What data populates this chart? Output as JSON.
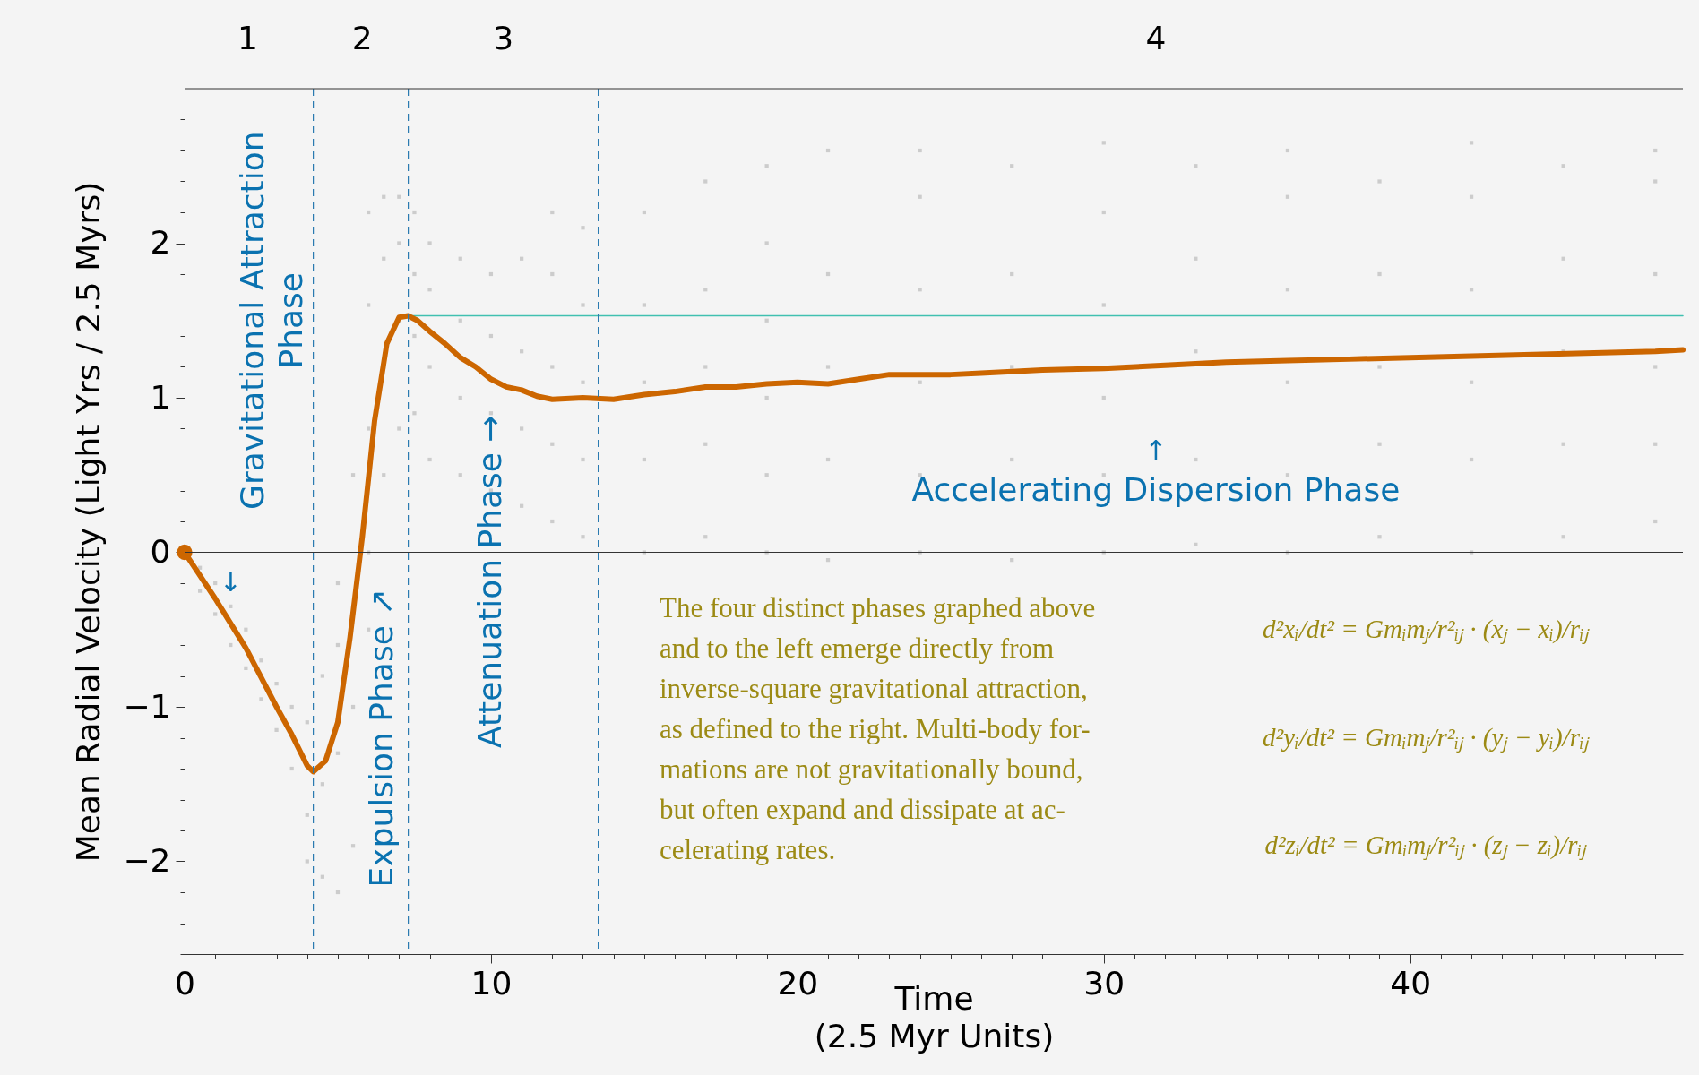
{
  "chart_data": {
    "type": "line",
    "xlabel": "Time\n(2.5 Myr Units)",
    "ylabel": "Mean Radial Velocity (Light Yrs / 2.5 Myrs)",
    "xlim": [
      0,
      48.9
    ],
    "ylim": [
      -2.6,
      3
    ],
    "xticks": [
      0,
      {
        "value": 1,
        "label": null
      },
      {
        "value": 2,
        "label": null
      },
      {
        "value": 3,
        "label": null
      },
      {
        "value": 4,
        "label": null
      },
      {
        "value": 5,
        "label": null
      },
      {
        "value": 6,
        "label": null
      },
      {
        "value": 7,
        "label": null
      },
      {
        "value": 8,
        "label": null
      },
      {
        "value": 9,
        "label": null
      },
      10,
      {
        "value": 11,
        "label": null
      },
      {
        "value": 12,
        "label": null
      },
      {
        "value": 13,
        "label": null
      },
      {
        "value": 14,
        "label": null
      },
      {
        "value": 15,
        "label": null
      },
      {
        "value": 16,
        "label": null
      },
      {
        "value": 17,
        "label": null
      },
      {
        "value": 18,
        "label": null
      },
      {
        "value": 19,
        "label": null
      },
      20,
      {
        "value": 21,
        "label": null
      },
      {
        "value": 22,
        "label": null
      },
      {
        "value": 23,
        "label": null
      },
      {
        "value": 24,
        "label": null
      },
      {
        "value": 25,
        "label": null
      },
      {
        "value": 26,
        "label": null
      },
      {
        "value": 27,
        "label": null
      },
      {
        "value": 28,
        "label": null
      },
      {
        "value": 29,
        "label": null
      },
      30,
      {
        "value": 31,
        "label": null
      },
      {
        "value": 32,
        "label": null
      },
      {
        "value": 33,
        "label": null
      },
      {
        "value": 34,
        "label": null
      },
      {
        "value": 35,
        "label": null
      },
      {
        "value": 36,
        "label": null
      },
      {
        "value": 37,
        "label": null
      },
      {
        "value": 38,
        "label": null
      },
      {
        "value": 39,
        "label": null
      },
      40,
      {
        "value": 41,
        "label": null
      },
      {
        "value": 42,
        "label": null
      },
      {
        "value": 43,
        "label": null
      },
      {
        "value": 44,
        "label": null
      },
      {
        "value": 45,
        "label": null
      },
      {
        "value": 46,
        "label": null
      },
      {
        "value": 47,
        "label": null
      },
      {
        "value": 48,
        "label": null
      }
    ],
    "yticks": [
      {
        "value": -2.6,
        "label": null
      },
      {
        "value": -2.4,
        "label": null
      },
      {
        "value": -2.2,
        "label": null
      },
      {
        "value": -2,
        "label": "−2"
      },
      {
        "value": -1.8,
        "label": null
      },
      {
        "value": -1.6,
        "label": null
      },
      {
        "value": -1.4,
        "label": null
      },
      {
        "value": -1.2,
        "label": null
      },
      {
        "value": -1,
        "label": "−1"
      },
      {
        "value": -0.8,
        "label": null
      },
      {
        "value": -0.6,
        "label": null
      },
      {
        "value": -0.4,
        "label": null
      },
      {
        "value": -0.2,
        "label": null
      },
      0,
      {
        "value": 0.2,
        "label": null
      },
      {
        "value": 0.4,
        "label": null
      },
      {
        "value": 0.6,
        "label": null
      },
      {
        "value": 0.8,
        "label": null
      },
      1,
      {
        "value": 1.2,
        "label": null
      },
      {
        "value": 1.4,
        "label": null
      },
      {
        "value": 1.6,
        "label": null
      },
      {
        "value": 1.8,
        "label": null
      },
      2,
      {
        "value": 2.2,
        "label": null
      },
      {
        "value": 2.4,
        "label": null
      },
      {
        "value": 2.6,
        "label": null
      },
      {
        "value": 2.8,
        "label": null
      }
    ],
    "grid": false,
    "marker": "none",
    "line_style": "solid",
    "ref_lines": [
      {
        "axis": "x",
        "value": 4.2,
        "color": "#2a7ab0",
        "line_style": "dashed"
      },
      {
        "axis": "x",
        "value": 7.3,
        "color": "#2a7ab0",
        "line_style": "dashed"
      },
      {
        "axis": "x",
        "value": 13.5,
        "color": "#2a7ab0",
        "line_style": "dashed"
      },
      {
        "axis": "y",
        "value": 0,
        "color": "#333333",
        "line_style": "solid"
      }
    ],
    "annotations": [
      "Gravitational Attraction\nPhase",
      "↓",
      "Expulsion Phase ↗",
      "Attenuation Phase →",
      "↑",
      "Accelerating Dispersion Phase",
      "The four distinct phases graphed above\nand to the left emerge directly from\ninverse-square gravitational attraction,\nas defined to the right. Multi-body for-\nmations are not gravitationally bound,\nbut often expand and dissipate at ac-\ncelerating rates.",
      "d²xᵢ/dt² = Gmᵢmⱼ/r²ᵢⱼ · (xⱼ − xᵢ)/rᵢⱼ",
      "d²yᵢ/dt² = Gmᵢmⱼ/r²ᵢⱼ · (yⱼ − yᵢ)/rᵢⱼ",
      "d²zᵢ/dt² = Gmᵢmⱼ/r²ᵢⱼ · (zⱼ − zᵢ)/rᵢⱼ",
      "1",
      "2",
      "3",
      "4"
    ],
    "series": [
      {
        "type": "scatter",
        "marker": "square",
        "color": "#cccccc",
        "x": [
          0.5,
          0.5,
          1,
          1,
          1.5,
          1.5,
          2,
          2,
          2.5,
          2.5,
          3,
          3,
          3.5,
          3.5,
          4,
          4,
          4,
          4.5,
          4.5,
          4.5,
          5,
          5,
          5,
          5,
          5.5,
          5.5,
          5.5,
          6,
          6,
          6,
          6,
          6,
          6.5,
          6.5,
          6.5,
          6.5,
          7,
          7,
          7,
          7,
          7.5,
          7.5,
          7.5,
          7.5,
          8,
          8,
          8,
          8,
          9,
          9,
          9,
          9,
          10,
          10,
          10,
          10,
          11,
          11,
          11,
          11,
          12,
          12,
          12,
          12,
          12,
          13,
          13,
          13,
          13,
          13,
          15,
          15,
          15,
          15,
          15,
          17,
          17,
          17,
          17,
          17,
          19,
          19,
          19,
          19,
          19,
          19,
          21,
          21,
          21,
          21,
          21,
          24,
          24,
          24,
          24,
          24,
          24,
          27,
          27,
          27,
          27,
          27,
          30,
          30,
          30,
          30,
          30,
          30,
          33,
          33,
          33,
          33,
          33,
          36,
          36,
          36,
          36,
          36,
          36,
          39,
          39,
          39,
          39,
          39,
          42,
          42,
          42,
          42,
          42,
          42,
          45,
          45,
          45,
          45,
          45,
          48,
          48,
          48,
          48,
          48,
          48
        ],
        "values": [
          -0.1,
          -0.25,
          -0.2,
          -0.4,
          -0.35,
          -0.6,
          -0.5,
          -0.75,
          -0.7,
          -0.95,
          -0.85,
          -1.15,
          -1.0,
          -1.4,
          -1.1,
          -1.7,
          -2.0,
          -0.8,
          -1.5,
          -2.1,
          -0.6,
          -1.3,
          -2.2,
          -0.2,
          -1.0,
          0.5,
          -1.9,
          0,
          0.8,
          1.6,
          2.2,
          -0.5,
          0.5,
          1.2,
          1.9,
          2.3,
          0.8,
          1.5,
          2.0,
          2.3,
          0.9,
          1.4,
          1.8,
          2.2,
          0.6,
          1.2,
          1.7,
          2.0,
          0.5,
          1.0,
          1.5,
          1.9,
          0.4,
          0.9,
          1.4,
          1.8,
          0.3,
          0.8,
          1.3,
          1.9,
          0.2,
          0.7,
          1.2,
          1.8,
          2.2,
          0.1,
          0.6,
          1.1,
          1.6,
          2.1,
          0,
          0.6,
          1.1,
          1.6,
          2.2,
          0.1,
          0.7,
          1.2,
          1.7,
          2.4,
          0,
          0.5,
          1.0,
          1.5,
          2.0,
          2.5,
          -0.05,
          0.6,
          1.2,
          1.8,
          2.6,
          0,
          0.5,
          1.1,
          1.7,
          2.3,
          2.6,
          -0.05,
          0.6,
          1.2,
          1.8,
          2.5,
          0,
          0.5,
          1.0,
          1.6,
          2.2,
          2.65,
          0.05,
          0.6,
          1.3,
          1.9,
          2.5,
          0,
          0.5,
          1.1,
          1.7,
          2.3,
          2.6,
          0.1,
          0.7,
          1.2,
          1.8,
          2.4,
          0,
          0.6,
          1.1,
          1.7,
          2.3,
          2.65,
          0.1,
          0.7,
          1.3,
          1.9,
          2.5,
          0.2,
          0.7,
          1.2,
          1.8,
          2.4,
          2.6
        ]
      },
      {
        "type": "line",
        "color": "#40c0b0",
        "x": [
          7.3,
          48.9
        ],
        "values": [
          1.53,
          1.53
        ]
      },
      {
        "color": "#cc6600",
        "x": [
          0,
          0.5,
          1,
          2,
          3,
          3.5,
          4,
          4.2,
          4.6,
          5,
          5.4,
          5.8,
          6.2,
          6.6,
          7,
          7.3,
          7.6,
          8,
          8.5,
          9,
          9.5,
          10,
          10.5,
          11,
          11.5,
          12,
          13,
          14,
          15,
          16,
          17,
          18,
          19,
          20,
          21,
          22,
          23,
          24,
          25,
          26,
          27,
          28,
          30,
          32,
          34,
          36,
          38,
          40,
          42,
          44,
          46,
          48,
          48.9
        ],
        "values": [
          0,
          -0.15,
          -0.3,
          -0.62,
          -1.0,
          -1.18,
          -1.38,
          -1.42,
          -1.35,
          -1.1,
          -0.55,
          0.1,
          0.85,
          1.35,
          1.52,
          1.53,
          1.5,
          1.43,
          1.35,
          1.26,
          1.2,
          1.12,
          1.07,
          1.05,
          1.01,
          0.99,
          1.0,
          0.99,
          1.02,
          1.04,
          1.07,
          1.07,
          1.09,
          1.1,
          1.09,
          1.12,
          1.15,
          1.15,
          1.15,
          1.16,
          1.17,
          1.18,
          1.19,
          1.21,
          1.23,
          1.24,
          1.25,
          1.26,
          1.27,
          1.28,
          1.29,
          1.3,
          1.31
        ]
      },
      {
        "type": "scatter",
        "marker": "circle",
        "color": "#cc6600",
        "x": [
          0
        ],
        "values": [
          0
        ]
      }
    ]
  }
}
